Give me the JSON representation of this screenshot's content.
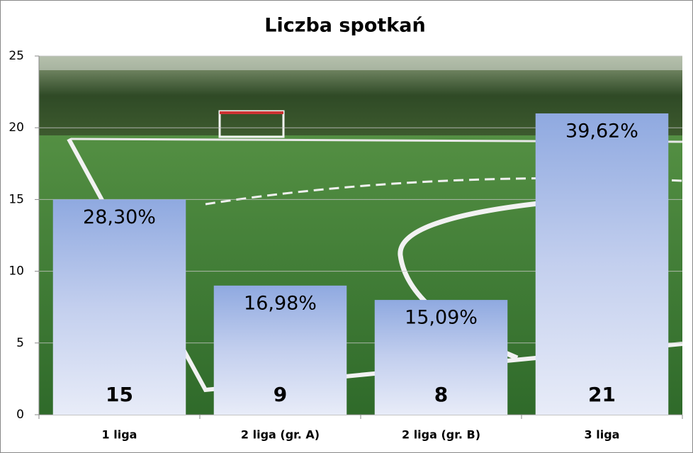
{
  "chart_data": {
    "type": "bar",
    "title": "Liczba spotkań",
    "categories": [
      "1 liga",
      "2 liga (gr. A)",
      "2 liga (gr. B)",
      "3 liga"
    ],
    "values": [
      15,
      9,
      8,
      21
    ],
    "shares": {
      "values": [
        28.3,
        16.98,
        15.09,
        39.62
      ],
      "value_labels": [
        "28,30%",
        "16,98%",
        "15,09%",
        "39,62%"
      ]
    },
    "color": "#8fa9e0",
    "ylim": [
      0,
      25
    ],
    "yticks": [
      0,
      5,
      10,
      15,
      20,
      25
    ],
    "grid": true
  }
}
